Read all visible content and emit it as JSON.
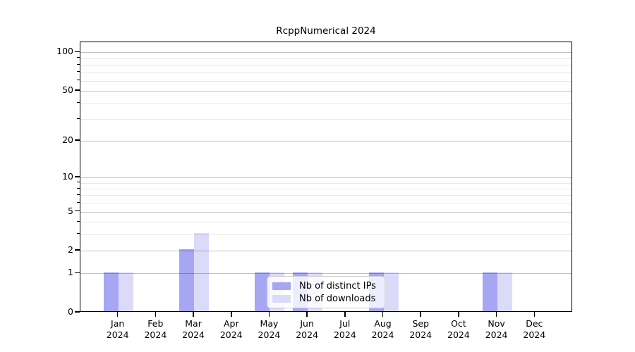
{
  "figure": {
    "background": "#ffffff"
  },
  "chart_data": {
    "type": "bar",
    "title": "RcppNumerical 2024",
    "xlabel": "",
    "ylabel": "",
    "categories": [
      "Jan",
      "Feb",
      "Mar",
      "Apr",
      "May",
      "Jun",
      "Jul",
      "Aug",
      "Sep",
      "Oct",
      "Nov",
      "Dec"
    ],
    "category_year": "2024",
    "series": [
      {
        "name": "Nb of distinct IPs",
        "key": "ips",
        "values": [
          1,
          0,
          2,
          0,
          1,
          1,
          0,
          1,
          0,
          0,
          1,
          0
        ]
      },
      {
        "name": "Nb of downloads",
        "key": "downloads",
        "values": [
          1,
          0,
          3,
          0,
          1,
          1,
          0,
          1,
          0,
          0,
          1,
          0
        ]
      }
    ],
    "y_scale": "log1p",
    "ylim": [
      0,
      120
    ],
    "y_major_ticks": [
      0,
      1,
      2,
      5,
      10,
      20,
      50,
      100
    ],
    "y_minor_ticks": [
      3,
      4,
      6,
      7,
      8,
      9,
      30,
      40,
      60,
      70,
      80,
      90
    ],
    "grid": true,
    "legend_position": "lower center"
  },
  "legend": {
    "items": [
      {
        "label": "Nb of distinct IPs",
        "key": "ips"
      },
      {
        "label": "Nb of downloads",
        "key": "downloads"
      }
    ]
  },
  "colors": {
    "ips": "#a6a6f2",
    "downloads": "#dbdbf9",
    "axis": "#000000",
    "grid_major": "#c2c2c2",
    "grid_minor": "#e9e9e9",
    "legend_border": "#cccccc",
    "text": "#000000"
  }
}
